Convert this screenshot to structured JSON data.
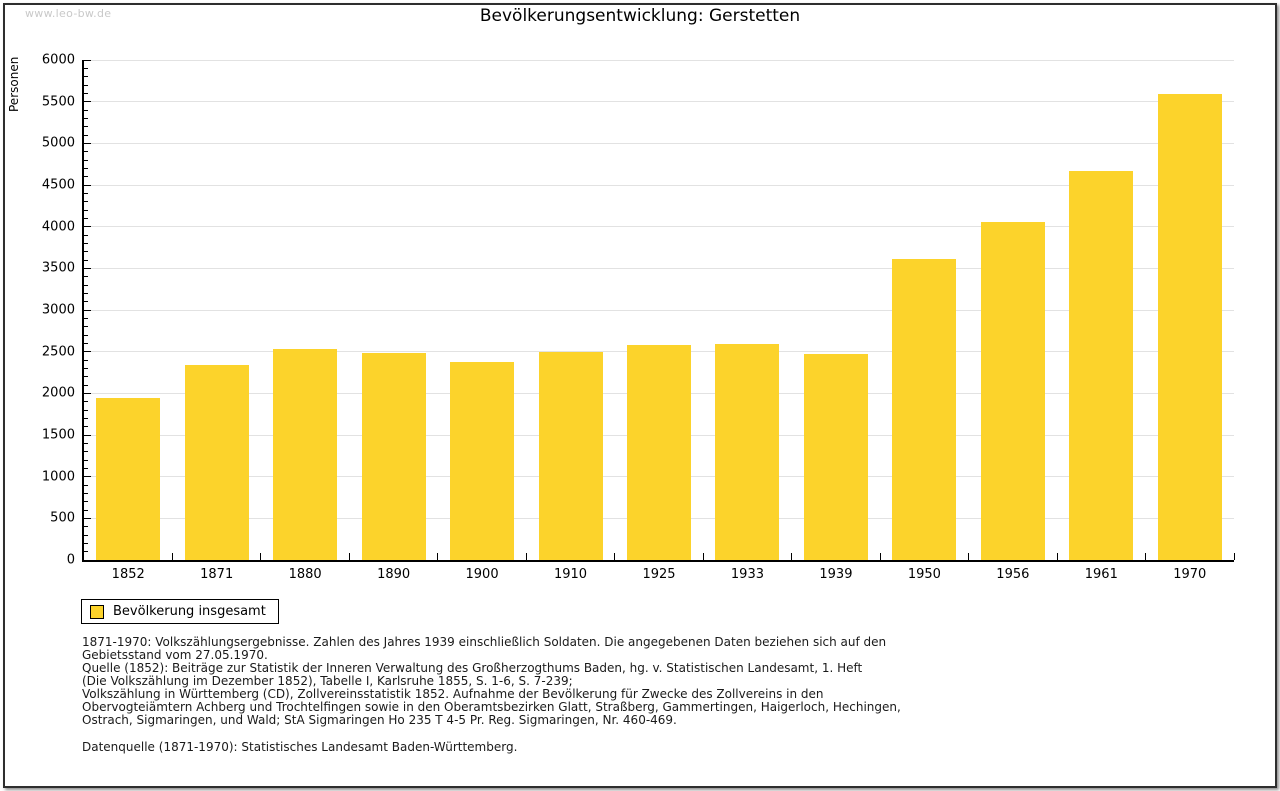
{
  "watermark": "www.leo-bw.de",
  "chart_data": {
    "type": "bar",
    "title": "Bevölkerungsentwicklung: Gerstetten",
    "ylabel": "Personen",
    "xlabel": "",
    "ylim": [
      0,
      6000
    ],
    "y_major_step": 500,
    "y_minor_step": 100,
    "grid": "horizontal-major",
    "legend_position": "bottom-left",
    "bar_color": "#FCD32B",
    "categories": [
      "1852",
      "1871",
      "1880",
      "1890",
      "1900",
      "1910",
      "1925",
      "1933",
      "1939",
      "1950",
      "1956",
      "1961",
      "1970"
    ],
    "series": [
      {
        "name": "Bevölkerung insgesamt",
        "values": [
          1945,
          2340,
          2535,
          2490,
          2380,
          2495,
          2580,
          2590,
          2470,
          3615,
          4060,
          4670,
          5590
        ]
      }
    ]
  },
  "legend": {
    "label": "Bevölkerung insgesamt",
    "swatch_color": "#FCD32B"
  },
  "footnotes": {
    "lines": [
      "1871-1970: Volkszählungsergebnisse. Zahlen des Jahres 1939 einschließlich Soldaten. Die angegebenen Daten beziehen sich auf den",
      "Gebietsstand vom 27.05.1970.",
      "Quelle (1852): Beiträge zur Statistik der Inneren Verwaltung des Großherzogthums Baden, hg. v. Statistischen Landesamt, 1. Heft",
      "(Die Volkszählung im Dezember 1852), Tabelle I, Karlsruhe 1855, S. 1-6, S. 7-239;",
      "Volkszählung in Württemberg (CD), Zollvereinsstatistik 1852. Aufnahme der Bevölkerung für Zwecke des Zollvereins in den",
      "Obervogteiämtern Achberg und Trochtelfingen sowie in den Oberamtsbezirken Glatt, Straßberg, Gammertingen, Haigerloch, Hechingen,",
      "Ostrach, Sigmaringen, und Wald; StA Sigmaringen Ho 235 T 4-5 Pr. Reg. Sigmaringen, Nr. 460-469."
    ],
    "datasource": "Datenquelle (1871-1970): Statistisches Landesamt Baden-Württemberg."
  }
}
